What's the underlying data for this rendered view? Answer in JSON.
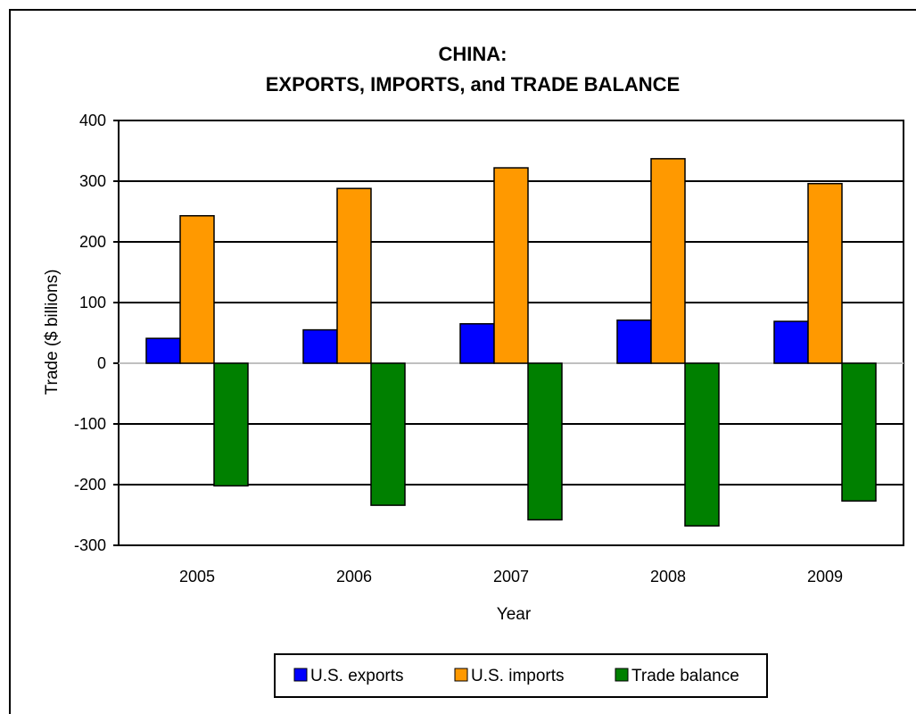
{
  "chart_data": {
    "type": "bar",
    "title": "CHINA:",
    "subtitle": "EXPORTS, IMPORTS, and TRADE BALANCE",
    "xlabel": "Year",
    "ylabel": "Trade ($ billions)",
    "categories": [
      "2005",
      "2006",
      "2007",
      "2008",
      "2009"
    ],
    "ylim": [
      -300,
      400
    ],
    "yticks": [
      400,
      300,
      200,
      100,
      0,
      -100,
      -200,
      -300
    ],
    "grid": true,
    "legend_position": "bottom",
    "series": [
      {
        "name": "U.S. exports",
        "color": "#0000ff",
        "values": [
          41,
          55,
          65,
          71,
          69
        ]
      },
      {
        "name": "U.S. imports",
        "color": "#ff9900",
        "values": [
          243,
          288,
          322,
          337,
          296
        ]
      },
      {
        "name": "Trade balance",
        "color": "#008000",
        "values": [
          -202,
          -234,
          -258,
          -268,
          -227
        ]
      }
    ]
  }
}
